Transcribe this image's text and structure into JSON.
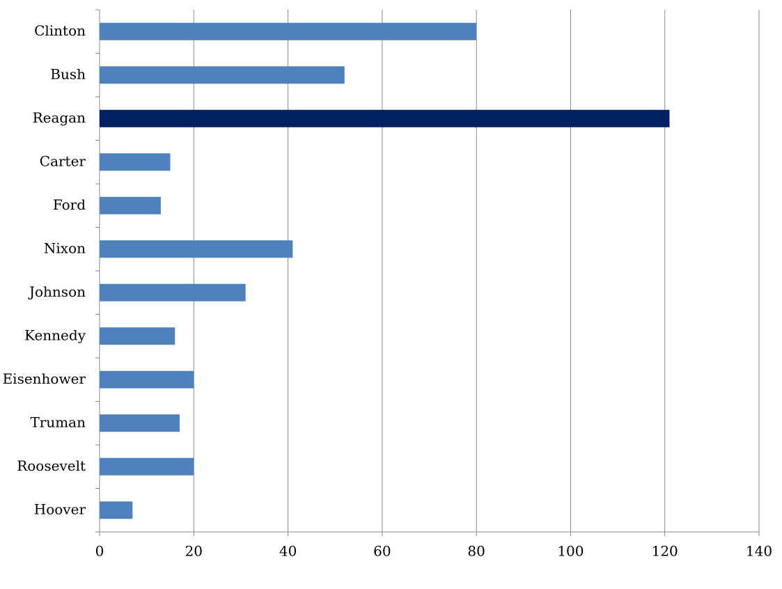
{
  "chart_data": {
    "type": "hbar",
    "categories": [
      "Clinton",
      "Bush",
      "Reagan",
      "Carter",
      "Ford",
      "Nixon",
      "Johnson",
      "Kennedy",
      "Eisenhower",
      "Truman",
      "Roosevelt",
      "Hoover"
    ],
    "values": [
      80,
      52,
      121,
      15,
      13,
      41,
      31,
      16,
      20,
      17,
      20,
      7
    ],
    "colors": [
      "#4f81bd",
      "#4f81bd",
      "#002060",
      "#4f81bd",
      "#4f81bd",
      "#4f81bd",
      "#4f81bd",
      "#4f81bd",
      "#4f81bd",
      "#4f81bd",
      "#4f81bd",
      "#4f81bd"
    ],
    "xlim": [
      0,
      140
    ],
    "xticks": [
      0,
      20,
      40,
      60,
      80,
      100,
      120,
      140
    ],
    "grid": true
  }
}
